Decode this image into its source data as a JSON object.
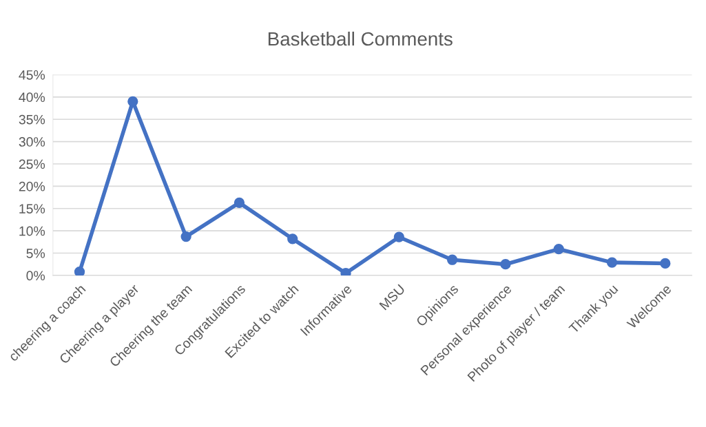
{
  "chart_data": {
    "type": "line",
    "title": "Basketball Comments",
    "categories": [
      "cheering a coach",
      "Cheering a player",
      "Cheering the team",
      "Congratulations",
      "Excited to watch",
      "Informative",
      "MSU",
      "Opinions",
      "Personal experience",
      "Photo of player / team",
      "Thank you",
      "Welcome"
    ],
    "series": [
      {
        "color": "#4472c4",
        "values": [
          0.8,
          39.0,
          8.7,
          16.3,
          8.2,
          0.5,
          8.6,
          3.5,
          2.5,
          5.9,
          2.9,
          2.7
        ]
      }
    ],
    "ylim": [
      0,
      45
    ],
    "yticks": [
      {
        "value": 0,
        "label": "0%"
      },
      {
        "value": 5,
        "label": "5%"
      },
      {
        "value": 10,
        "label": "10%"
      },
      {
        "value": 15,
        "label": "15%"
      },
      {
        "value": 20,
        "label": "20%"
      },
      {
        "value": 25,
        "label": "25%"
      },
      {
        "value": 30,
        "label": "30%"
      },
      {
        "value": 35,
        "label": "35%"
      },
      {
        "value": 40,
        "label": "40%"
      },
      {
        "value": 45,
        "label": "45%"
      }
    ],
    "grid": "y",
    "marker": "circle",
    "line_style": "solid"
  }
}
